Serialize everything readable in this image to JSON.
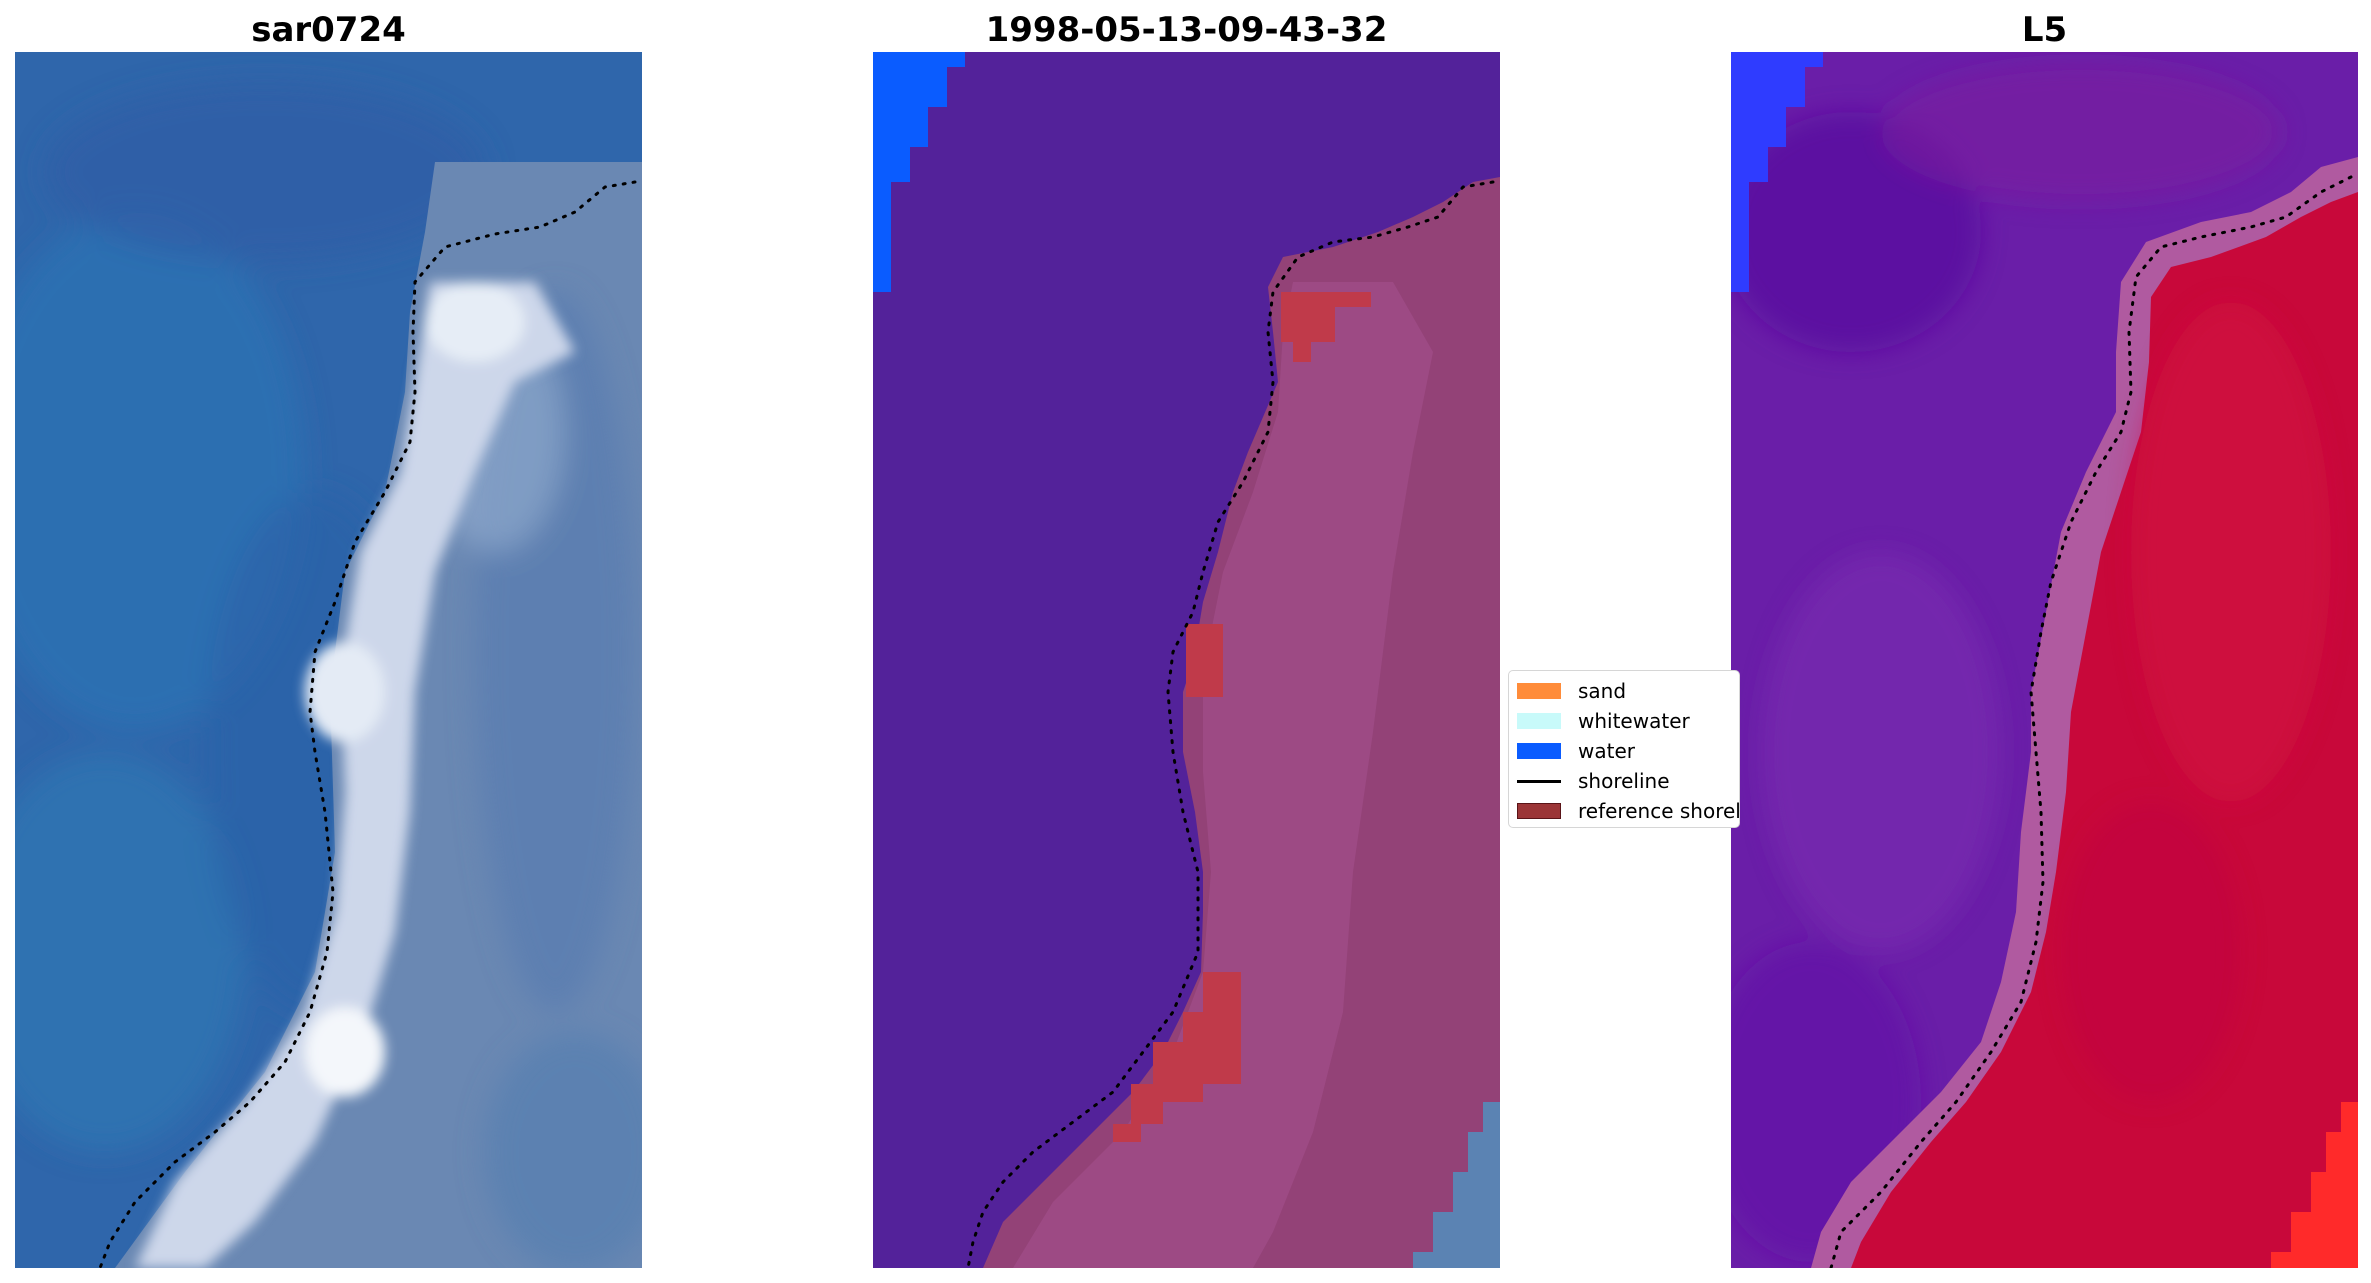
{
  "titles": {
    "panel1": "sar0724",
    "panel2": "1998-05-13-09-43-32",
    "panel3": "L5"
  },
  "legend": {
    "items": [
      {
        "label": "sand",
        "kind": "patch",
        "color": "#ff8c3a",
        "edge": "#ff8c3a"
      },
      {
        "label": "whitewater",
        "kind": "patch",
        "color": "#c8fafa",
        "edge": "#c8fafa"
      },
      {
        "label": "water",
        "kind": "patch",
        "color": "#0a5cff",
        "edge": "#0a5cff"
      },
      {
        "label": "shoreline",
        "kind": "line",
        "color": "#000000"
      },
      {
        "label": "reference shoreline buffer",
        "kind": "patch",
        "color": "#9b3537",
        "edge": "#5a1418"
      }
    ]
  },
  "colors": {
    "sar_water": "#2e6aad",
    "sar_water_dark": "#2a5ea4",
    "sar_surf": "#d8e2f0",
    "sar_land": "#6f8fb8",
    "class_water_bg": "#53229a",
    "class_land": "#924277",
    "class_land_light": "#a1508a",
    "class_buffer": "#c03a4a",
    "class_water": "#0a5cff",
    "class_grey": "#5b83b3",
    "mndwi_water": "#6a1ea8",
    "mndwi_land": "#c8083a",
    "mndwi_edge": "#b05aa0",
    "mndwi_blue": "#2f3cff",
    "mndwi_red_bright": "#ff2a2a",
    "shoreline": "#000000"
  }
}
